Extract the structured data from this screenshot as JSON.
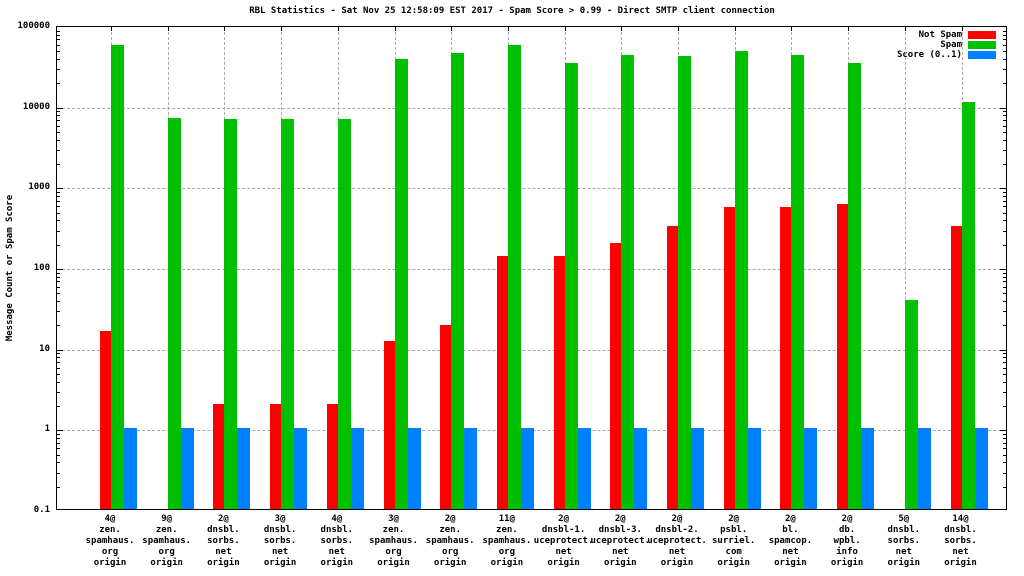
{
  "chart_data": {
    "type": "bar",
    "title": "RBL Statistics - Sat Nov 25 12:58:09 EST 2017 - Spam Score > 0.99 - Direct SMTP client connection",
    "ylabel": "Message Count or Spam Score",
    "xlabel": "",
    "y_scale": "log",
    "ylim": [
      0.1,
      100000
    ],
    "y_ticks": [
      "100000",
      "10000",
      "1000",
      "100",
      "10",
      "1",
      "0.1"
    ],
    "grid": true,
    "legend_position": "top-right",
    "colors": {
      "not_spam": "#ff0000",
      "spam": "#00c000",
      "score": "#0080ff",
      "grid": "#a8a8a8",
      "axis": "#000000",
      "background": "#ffffff"
    },
    "legend": [
      {
        "label": "Not Spam",
        "color": "#ff0000"
      },
      {
        "label": "Spam",
        "color": "#00c000"
      },
      {
        "label": "Score (0..1)",
        "color": "#0080ff"
      }
    ],
    "categories": [
      [
        "4@",
        "zen.",
        "spamhaus.",
        "org",
        "origin"
      ],
      [
        "9@",
        "zen.",
        "spamhaus.",
        "org",
        "origin"
      ],
      [
        "2@",
        "dnsbl.",
        "sorbs.",
        "net",
        "origin"
      ],
      [
        "3@",
        "dnsbl.",
        "sorbs.",
        "net",
        "origin"
      ],
      [
        "4@",
        "dnsbl.",
        "sorbs.",
        "net",
        "origin"
      ],
      [
        "3@",
        "zen.",
        "spamhaus.",
        "org",
        "origin"
      ],
      [
        "2@",
        "zen.",
        "spamhaus.",
        "org",
        "origin"
      ],
      [
        "11@",
        "zen.",
        "spamhaus.",
        "org",
        "origin"
      ],
      [
        "2@",
        "dnsbl-1.",
        "uceprotect.",
        "net",
        "origin"
      ],
      [
        "2@",
        "dnsbl-3.",
        "uceprotect.",
        "net",
        "origin"
      ],
      [
        "2@",
        "dnsbl-2.",
        "uceprotect.",
        "net",
        "origin"
      ],
      [
        "2@",
        "psbl.",
        "surriel.",
        "com",
        "origin"
      ],
      [
        "2@",
        "bl.",
        "spamcop.",
        "net",
        "origin"
      ],
      [
        "2@",
        "db.",
        "wpbl.",
        "info",
        "origin"
      ],
      [
        "5@",
        "dnsbl.",
        "sorbs.",
        "net",
        "origin"
      ],
      [
        "14@",
        "dnsbl.",
        "sorbs.",
        "net",
        "origin"
      ]
    ],
    "series": [
      {
        "name": "Not Spam",
        "color": "#ff0000",
        "values": [
          16,
          0,
          2,
          2,
          2,
          12,
          19,
          135,
          135,
          200,
          320,
          560,
          560,
          600,
          0,
          320
        ]
      },
      {
        "name": "Spam",
        "color": "#00c000",
        "values": [
          57000,
          7000,
          6800,
          6800,
          6800,
          38000,
          45000,
          57000,
          34000,
          42000,
          41000,
          48000,
          42000,
          34000,
          39,
          11000
        ]
      },
      {
        "name": "Score (0..1)",
        "color": "#0080ff",
        "values": [
          1,
          1,
          1,
          1,
          1,
          1,
          1,
          1,
          1,
          1,
          1,
          1,
          1,
          1,
          1,
          1
        ]
      }
    ]
  }
}
